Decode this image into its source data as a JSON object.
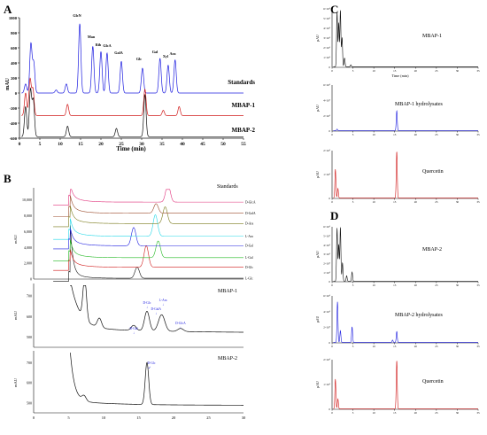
{
  "colors": {
    "black": "#111111",
    "blue": "#1c1ce0",
    "red": "#d01818",
    "cyan": "#22d8e8",
    "green": "#22b822",
    "olive": "#7a7a1a",
    "brown": "#9a4a2a",
    "pink": "#e0307a"
  },
  "panel_labels": {
    "A": "A",
    "B": "B",
    "C": "C",
    "D": "D"
  },
  "chart_data": [
    {
      "id": "A",
      "type": "line",
      "xlabel": "Time (min)",
      "ylabel": "mAU",
      "xlim": [
        0,
        55
      ],
      "ylim": [
        -600,
        1000
      ],
      "xticks": [
        0,
        5,
        10,
        15,
        20,
        25,
        30,
        35,
        40,
        45,
        50,
        55
      ],
      "yticks": [
        -600,
        -400,
        -200,
        0,
        200,
        400,
        600,
        800,
        1000
      ],
      "series": [
        {
          "name": "Standards",
          "color": "blue",
          "offset": 0,
          "peaks": [
            [
              1.5,
              120
            ],
            [
              2.8,
              650
            ],
            [
              3.5,
              400
            ],
            [
              9,
              40
            ],
            [
              11.5,
              120
            ],
            [
              14.8,
              920
            ],
            [
              18,
              620
            ],
            [
              20,
              550
            ],
            [
              21.5,
              530
            ],
            [
              25,
              420
            ],
            [
              30.2,
              330
            ],
            [
              34.5,
              460
            ],
            [
              36.5,
              370
            ],
            [
              38.2,
              440
            ]
          ],
          "peak_labels": [
            "GlcN",
            "Man",
            "Rib",
            "GlcA",
            "GalA",
            "Glc",
            "Gal",
            "Xyl",
            "Ara"
          ]
        },
        {
          "name": "MBAP-1",
          "color": "red",
          "offset": -300,
          "peaks": [
            [
              1.5,
              300
            ],
            [
              2.6,
              480
            ],
            [
              3.3,
              350
            ],
            [
              11.8,
              150
            ],
            [
              30.8,
              350
            ],
            [
              35.3,
              70
            ],
            [
              39.2,
              120
            ]
          ]
        },
        {
          "name": "MBAP-2",
          "color": "black",
          "offset": -580,
          "peaks": [
            [
              1.5,
              400
            ],
            [
              2.7,
              620
            ],
            [
              3.4,
              480
            ],
            [
              11.8,
              140
            ],
            [
              23.8,
              110
            ],
            [
              30.8,
              560
            ]
          ]
        }
      ]
    },
    {
      "id": "B-top",
      "type": "line",
      "title": "Standards",
      "ylabel": "mAU",
      "xlim": [
        0,
        30
      ],
      "ylim": [
        0,
        11500
      ],
      "yticks": [
        0,
        2000,
        4000,
        6000,
        8000,
        10000
      ],
      "series": [
        {
          "name": "L-Glc",
          "color": "black",
          "base": 100,
          "peaks": [
            [
              14.8,
              1400
            ]
          ]
        },
        {
          "name": "D-Glc",
          "color": "red",
          "base": 1500,
          "peaks": [
            [
              16.1,
              2700
            ]
          ]
        },
        {
          "name": "L-Gal",
          "color": "green",
          "base": 2700,
          "peaks": [
            [
              17.8,
              2100
            ]
          ]
        },
        {
          "name": "D-Gal",
          "color": "blue",
          "base": 4200,
          "peaks": [
            [
              14.3,
              2300
            ]
          ]
        },
        {
          "name": "L-Ara",
          "color": "cyan",
          "base": 5400,
          "peaks": [
            [
              17.4,
              2700
            ]
          ]
        },
        {
          "name": "D-Ara",
          "color": "olive",
          "base": 7000,
          "peaks": [
            [
              18.8,
              2100
            ]
          ]
        },
        {
          "name": "D-GalA",
          "color": "brown",
          "base": 8300,
          "peaks": [
            [
              17.5,
              1200
            ]
          ]
        },
        {
          "name": "D-GlcA",
          "color": "pink",
          "base": 9700,
          "peaks": [
            [
              19.2,
              2300
            ]
          ]
        }
      ]
    },
    {
      "id": "B-mid",
      "type": "line",
      "title": "MBAP-1",
      "ylabel": "mAU",
      "xlim": [
        0,
        30
      ],
      "ylim": [
        450,
        760
      ],
      "yticks": [
        500,
        600,
        700
      ],
      "series": [
        {
          "name": "MBAP-1",
          "color": "black"
        }
      ],
      "annotations": [
        {
          "label": "D-Gal",
          "x": 14.3
        },
        {
          "label": "D-Glc",
          "x": 16.2
        },
        {
          "label": "D-GalA",
          "x": 17.5
        },
        {
          "label": "L-Ara",
          "x": 18.5
        },
        {
          "label": "D-GlcA",
          "x": 21.0
        }
      ]
    },
    {
      "id": "B-bot",
      "type": "line",
      "title": "MBAP-2",
      "ylabel": "mAU",
      "xlim": [
        0,
        30
      ],
      "ylim": [
        450,
        760
      ],
      "yticks": [
        500,
        600,
        700
      ],
      "xticks": [
        0,
        5,
        10,
        15,
        20,
        25,
        30
      ],
      "series": [
        {
          "name": "MBAP-2",
          "color": "black"
        }
      ],
      "annotations": [
        {
          "label": "D-Glc",
          "x": 16.2
        }
      ]
    },
    {
      "id": "C1",
      "type": "line",
      "title": "MBAP-1",
      "ylabel": "μAU",
      "xlabel": "Time (min)",
      "xlim": [
        0,
        35
      ],
      "ylim": [
        0,
        6000000
      ],
      "yticks": [
        "0",
        "1×10⁶",
        "2×10⁶",
        "3×10⁶",
        "4×10⁶",
        "5×10⁶",
        "6×10⁶"
      ],
      "series": [
        {
          "name": "MBAP-1",
          "color": "black",
          "peaks": [
            [
              1.2,
              5600000
            ],
            [
              1.6,
              4500000
            ],
            [
              2.0,
              5800000
            ],
            [
              2.4,
              3000000
            ],
            [
              3.0,
              900000
            ],
            [
              4.5,
              200000
            ]
          ]
        }
      ]
    },
    {
      "id": "C2",
      "type": "line",
      "title": "MBAP-1 hydrolysates",
      "ylabel": "μAU",
      "xlim": [
        0,
        35
      ],
      "ylim": [
        0,
        6000000
      ],
      "yticks": [
        "0",
        "2×10⁶",
        "4×10⁶",
        "6×10⁶"
      ],
      "series": [
        {
          "name": "MBAP-1 hydrolysates",
          "color": "blue",
          "peaks": [
            [
              1.2,
              200000
            ],
            [
              15.5,
              2600000
            ]
          ]
        }
      ]
    },
    {
      "id": "C3",
      "type": "line",
      "title": "Quercetin",
      "ylabel": "μAU",
      "xlim": [
        0,
        35
      ],
      "ylim": [
        0,
        2000000
      ],
      "yticks": [
        "0",
        "1×10⁶",
        "2×10⁶"
      ],
      "series": [
        {
          "name": "Quercetin",
          "color": "red",
          "peaks": [
            [
              0.8,
              1200000
            ],
            [
              1.4,
              400000
            ],
            [
              15.5,
              1950000
            ]
          ]
        }
      ]
    },
    {
      "id": "D1",
      "type": "line",
      "title": "MBAP-2",
      "ylabel": "μAU",
      "xlim": [
        0,
        35
      ],
      "ylim": [
        0,
        6000000
      ],
      "yticks": [
        "0",
        "1×10⁶",
        "2×10⁶",
        "3×10⁶",
        "4×10⁶",
        "5×10⁶",
        "6×10⁶"
      ],
      "series": [
        {
          "name": "MBAP-2",
          "color": "black",
          "peaks": [
            [
              1.2,
              5800000
            ],
            [
              1.6,
              4000000
            ],
            [
              2.0,
              5900000
            ],
            [
              2.5,
              2000000
            ],
            [
              3.5,
              600000
            ],
            [
              4.8,
              1000000
            ]
          ]
        }
      ]
    },
    {
      "id": "D2",
      "type": "line",
      "title": "MBAP-2 hydrolysates",
      "ylabel": "μAU",
      "xlim": [
        0,
        35
      ],
      "ylim": [
        0,
        6000000
      ],
      "yticks": [
        "0",
        "2×10⁶",
        "4×10⁶",
        "6×10⁶"
      ],
      "series": [
        {
          "name": "MBAP-2 hydrolysates",
          "color": "blue",
          "peaks": [
            [
              1.3,
              5200000
            ],
            [
              2.0,
              1500000
            ],
            [
              4.8,
              2000000
            ],
            [
              14.5,
              300000
            ],
            [
              15.5,
              1400000
            ]
          ]
        }
      ]
    },
    {
      "id": "D3",
      "type": "line",
      "title": "Quercetin",
      "ylabel": "μAU",
      "xlim": [
        0,
        35
      ],
      "ylim": [
        0,
        2000000
      ],
      "yticks": [
        "0",
        "1×10⁶",
        "2×10⁶"
      ],
      "xticks": [
        0,
        5,
        10,
        15,
        20,
        25,
        30,
        35
      ],
      "series": [
        {
          "name": "Quercetin",
          "color": "red",
          "peaks": [
            [
              0.8,
              1200000
            ],
            [
              1.4,
              400000
            ],
            [
              15.5,
              1950000
            ]
          ]
        }
      ]
    }
  ]
}
